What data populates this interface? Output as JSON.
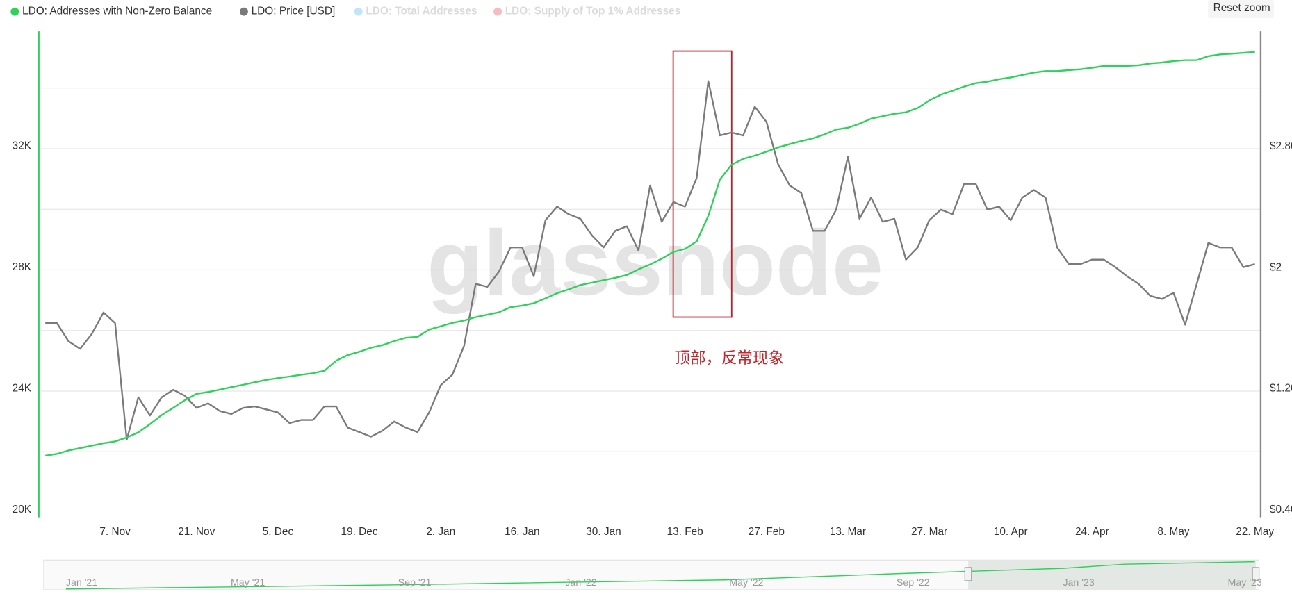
{
  "chart_data": {
    "type": "line",
    "watermark": "glassnode",
    "reset_zoom": "Reset zoom",
    "annotation": "顶部，反常现象",
    "x": [
      "26. Oct",
      "28. Oct",
      "30. Oct",
      "1. Nov",
      "3. Nov",
      "5. Nov",
      "7. Nov",
      "9. Nov",
      "11. Nov",
      "13. Nov",
      "15. Nov",
      "17. Nov",
      "19. Nov",
      "21. Nov",
      "23. Nov",
      "25. Nov",
      "27. Nov",
      "29. Nov",
      "1. Dec",
      "3. Dec",
      "5. Dec",
      "7. Dec",
      "9. Dec",
      "11. Dec",
      "13. Dec",
      "15. Dec",
      "17. Dec",
      "19. Dec",
      "21. Dec",
      "23. Dec",
      "25. Dec",
      "27. Dec",
      "29. Dec",
      "31. Dec",
      "2. Jan",
      "4. Jan",
      "6. Jan",
      "8. Jan",
      "10. Jan",
      "12. Jan",
      "14. Jan",
      "16. Jan",
      "18. Jan",
      "20. Jan",
      "22. Jan",
      "24. Jan",
      "26. Jan",
      "28. Jan",
      "30. Jan",
      "1. Feb",
      "3. Feb",
      "5. Feb",
      "7. Feb",
      "9. Feb",
      "11. Feb",
      "13. Feb",
      "15. Feb",
      "17. Feb",
      "19. Feb",
      "21. Feb",
      "23. Feb",
      "25. Feb",
      "27. Feb",
      "1. Mar",
      "3. Mar",
      "5. Mar",
      "7. Mar",
      "9. Mar",
      "11. Mar",
      "13. Mar",
      "15. Mar",
      "17. Mar",
      "19. Mar",
      "21. Mar",
      "23. Mar",
      "25. Mar",
      "27. Mar",
      "29. Mar",
      "31. Mar",
      "2. Apr",
      "4. Apr",
      "6. Apr",
      "8. Apr",
      "10. Apr",
      "12. Apr",
      "14. Apr",
      "16. Apr",
      "18. Apr",
      "20. Apr",
      "22. Apr",
      "24. Apr",
      "26. Apr",
      "28. Apr",
      "30. Apr",
      "2. May",
      "4. May",
      "6. May",
      "8. May",
      "10. May",
      "12. May",
      "14. May",
      "16. May",
      "18. May",
      "20. May",
      "22. May"
    ],
    "xticks": [
      "7. Nov",
      "21. Nov",
      "5. Dec",
      "19. Dec",
      "2. Jan",
      "16. Jan",
      "30. Jan",
      "13. Feb",
      "27. Feb",
      "13. Mar",
      "27. Mar",
      "10. Apr",
      "24. Apr",
      "8. May",
      "22. May"
    ],
    "series": [
      {
        "name": "LDO: Addresses with Non-Zero Balance",
        "color": "#2ed15a",
        "axis": "y",
        "values": [
          21870,
          21930,
          22040,
          22120,
          22200,
          22280,
          22340,
          22470,
          22640,
          22910,
          23210,
          23450,
          23700,
          23910,
          23970,
          24050,
          24130,
          24210,
          24290,
          24370,
          24430,
          24480,
          24540,
          24590,
          24670,
          25000,
          25190,
          25300,
          25430,
          25520,
          25650,
          25760,
          25790,
          26030,
          26140,
          26250,
          26330,
          26440,
          26520,
          26600,
          26770,
          26820,
          26900,
          27060,
          27230,
          27360,
          27500,
          27580,
          27660,
          27740,
          27830,
          28020,
          28180,
          28370,
          28590,
          28690,
          28940,
          29780,
          30980,
          31470,
          31660,
          31770,
          31900,
          32040,
          32150,
          32250,
          32340,
          32470,
          32630,
          32690,
          32820,
          32990,
          33070,
          33150,
          33200,
          33340,
          33590,
          33780,
          33910,
          34050,
          34160,
          34210,
          34290,
          34350,
          34430,
          34510,
          34560,
          34560,
          34590,
          34620,
          34670,
          34730,
          34730,
          34730,
          34750,
          34810,
          34840,
          34890,
          34920,
          34920,
          35050,
          35110,
          35130,
          35160,
          35190
        ]
      },
      {
        "name": "LDO: Price [USD]",
        "color": "#7a7a7a",
        "axis": "y2",
        "values": [
          1.65,
          1.65,
          1.53,
          1.48,
          1.58,
          1.72,
          1.65,
          0.88,
          1.16,
          1.04,
          1.16,
          1.21,
          1.17,
          1.09,
          1.12,
          1.07,
          1.05,
          1.09,
          1.1,
          1.08,
          1.06,
          0.99,
          1.01,
          1.01,
          1.1,
          1.1,
          0.96,
          0.93,
          0.9,
          0.94,
          1.0,
          0.96,
          0.93,
          1.06,
          1.24,
          1.31,
          1.5,
          1.91,
          1.89,
          1.99,
          2.15,
          2.15,
          1.96,
          2.33,
          2.42,
          2.37,
          2.34,
          2.23,
          2.15,
          2.26,
          2.29,
          2.13,
          2.56,
          2.32,
          2.45,
          2.42,
          2.61,
          3.25,
          2.89,
          2.91,
          2.89,
          3.08,
          2.98,
          2.7,
          2.56,
          2.51,
          2.26,
          2.26,
          2.4,
          2.75,
          2.34,
          2.48,
          2.32,
          2.34,
          2.07,
          2.15,
          2.33,
          2.4,
          2.37,
          2.57,
          2.57,
          2.4,
          2.42,
          2.33,
          2.48,
          2.53,
          2.48,
          2.15,
          2.04,
          2.04,
          2.07,
          2.07,
          2.02,
          1.96,
          1.91,
          1.83,
          1.81,
          1.85,
          1.64,
          1.91,
          2.18,
          2.15,
          2.15,
          2.02,
          2.04
        ]
      }
    ],
    "hidden_series": [
      {
        "name": "LDO: Total Addresses",
        "color": "#4fb3e8"
      },
      {
        "name": "LDO: Supply of Top 1% Addresses",
        "color": "#e8444f"
      }
    ],
    "ylim": [
      20000,
      35870
    ],
    "yticks": [
      {
        "value": 20000,
        "label": "20K"
      },
      {
        "value": 24000,
        "label": "24K"
      },
      {
        "value": 28000,
        "label": "28K"
      },
      {
        "value": 32000,
        "label": "32K"
      }
    ],
    "ygrid": [
      22000,
      24000,
      26000,
      28000,
      30000,
      32000,
      34000
    ],
    "y2lim": [
      0.4,
      3.578
    ],
    "y2ticks": [
      {
        "value": 0.4,
        "label": "$0.40"
      },
      {
        "value": 1.2,
        "label": "$1.20"
      },
      2,
      {
        "value": 2.8,
        "label": "$2.80"
      }
    ],
    "y2tick_prefix_label_for_2": "$2",
    "navigator_labels": [
      "Jan '21",
      "May '21",
      "Sep '21",
      "Jan '22",
      "May '22",
      "Sep '22",
      "Jan '23",
      "May '23"
    ]
  }
}
